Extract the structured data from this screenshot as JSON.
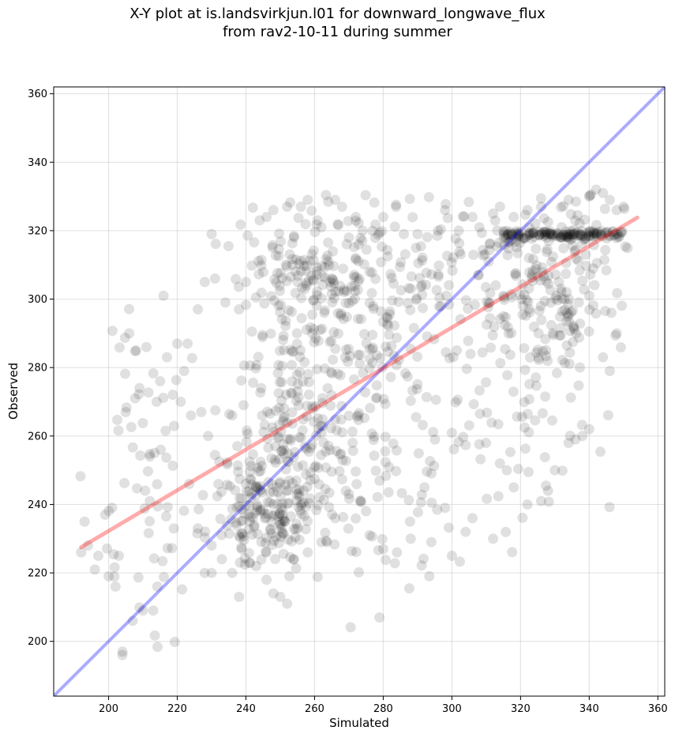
{
  "chart_data": {
    "type": "scatter",
    "title_line1": "X-Y plot at is.landsvirkjun.l01 for downward_longwave_flux",
    "title_line2": "from rav2-10-11 during summer",
    "xlabel": "Simulated",
    "ylabel": "Observed",
    "xlim": [
      184,
      362
    ],
    "ylim": [
      184,
      362
    ],
    "xticks": [
      200,
      220,
      240,
      260,
      280,
      300,
      320,
      340,
      360
    ],
    "yticks": [
      200,
      220,
      240,
      260,
      280,
      300,
      320,
      340,
      360
    ],
    "grid": true,
    "point_color": "#000000",
    "point_alpha": 0.12,
    "one_to_one_line": {
      "color": "#0000ff",
      "alpha": 0.33,
      "x": [
        184,
        362
      ],
      "y": [
        184,
        362
      ]
    },
    "regression_line": {
      "color": "#ff0000",
      "alpha": 0.33,
      "x": [
        192,
        354
      ],
      "y": [
        227.5,
        323.8
      ]
    },
    "clusters": [
      {
        "cx": 246,
        "cy": 238,
        "sx": 8,
        "sy": 9,
        "n": 180,
        "seed": 11
      },
      {
        "cx": 255,
        "cy": 262,
        "sx": 9,
        "sy": 14,
        "n": 150,
        "seed": 12
      },
      {
        "cx": 258,
        "cy": 305,
        "sx": 10,
        "sy": 10,
        "n": 130,
        "seed": 13
      },
      {
        "cx": 272,
        "cy": 285,
        "sx": 14,
        "sy": 25,
        "n": 160,
        "seed": 14
      },
      {
        "cx": 300,
        "cy": 305,
        "sx": 14,
        "sy": 12,
        "n": 110,
        "seed": 15
      },
      {
        "cx": 330,
        "cy": 305,
        "sx": 9,
        "sy": 12,
        "n": 160,
        "seed": 16
      },
      {
        "cx": 322,
        "cy": 270,
        "sx": 10,
        "sy": 15,
        "n": 60,
        "seed": 17
      },
      {
        "cx": 210,
        "cy": 240,
        "sx": 8,
        "sy": 25,
        "n": 60,
        "seed": 18
      },
      {
        "cx": 290,
        "cy": 250,
        "sx": 14,
        "sy": 18,
        "n": 70,
        "seed": 19
      }
    ],
    "dense_band": {
      "x_start": 315,
      "x_end": 350,
      "y": 318.8,
      "n": 140,
      "seed": 21
    },
    "points": [
      [
        192,
        226
      ],
      [
        193,
        235
      ],
      [
        194,
        228
      ],
      [
        196,
        221
      ],
      [
        197,
        225
      ],
      [
        199,
        237
      ],
      [
        200,
        219
      ],
      [
        201,
        239
      ],
      [
        202,
        216
      ],
      [
        203,
        225
      ],
      [
        204,
        196
      ],
      [
        205,
        267
      ],
      [
        206,
        290
      ],
      [
        207,
        206
      ],
      [
        208,
        285
      ],
      [
        209,
        274
      ],
      [
        210,
        209
      ],
      [
        211,
        286
      ],
      [
        212,
        241
      ],
      [
        213,
        209
      ],
      [
        215,
        276
      ],
      [
        216,
        301
      ],
      [
        217,
        283
      ],
      [
        219,
        233
      ],
      [
        220,
        287
      ],
      [
        221,
        270
      ],
      [
        222,
        279
      ],
      [
        223,
        287
      ],
      [
        224,
        266
      ],
      [
        226,
        297
      ],
      [
        227,
        267
      ],
      [
        228,
        305
      ],
      [
        229,
        260
      ],
      [
        230,
        319
      ],
      [
        231,
        306
      ],
      [
        232,
        246
      ],
      [
        234,
        299
      ],
      [
        236,
        266
      ],
      [
        238,
        297
      ],
      [
        240,
        305
      ],
      [
        244,
        323
      ],
      [
        246,
        324
      ],
      [
        248,
        326
      ],
      [
        252,
        327
      ],
      [
        254,
        318
      ],
      [
        256,
        327
      ],
      [
        258,
        329
      ],
      [
        262,
        321
      ],
      [
        264,
        311
      ],
      [
        266,
        329
      ],
      [
        268,
        327
      ],
      [
        270,
        318
      ],
      [
        272,
        324
      ],
      [
        274,
        320
      ],
      [
        276,
        308
      ],
      [
        280,
        324
      ],
      [
        286,
        319
      ],
      [
        290,
        319
      ],
      [
        296,
        320
      ],
      [
        298,
        326
      ],
      [
        302,
        320
      ],
      [
        306,
        324
      ],
      [
        308,
        321
      ],
      [
        312,
        325
      ],
      [
        314,
        327
      ],
      [
        318,
        324
      ],
      [
        322,
        326
      ],
      [
        326,
        327
      ],
      [
        332,
        321
      ],
      [
        334,
        329
      ],
      [
        340,
        330
      ],
      [
        342,
        332
      ],
      [
        344,
        331
      ],
      [
        346,
        329
      ],
      [
        348,
        326
      ],
      [
        350,
        327
      ],
      [
        348,
        290
      ],
      [
        346,
        279
      ],
      [
        344,
        283
      ],
      [
        340,
        262
      ],
      [
        338,
        260
      ],
      [
        336,
        259
      ],
      [
        334,
        258
      ],
      [
        330,
        250
      ],
      [
        328,
        244
      ],
      [
        326,
        241
      ],
      [
        322,
        240
      ],
      [
        318,
        245
      ],
      [
        316,
        250
      ],
      [
        314,
        252
      ],
      [
        312,
        230
      ],
      [
        306,
        236
      ],
      [
        304,
        232
      ],
      [
        300,
        225
      ],
      [
        298,
        239
      ],
      [
        294,
        229
      ],
      [
        292,
        245
      ],
      [
        288,
        230
      ],
      [
        284,
        226
      ],
      [
        280,
        227
      ],
      [
        276,
        231
      ],
      [
        270,
        243
      ],
      [
        266,
        236
      ],
      [
        262,
        229
      ],
      [
        258,
        226
      ],
      [
        254,
        224
      ],
      [
        252,
        211
      ],
      [
        250,
        213
      ],
      [
        248,
        214
      ],
      [
        246,
        218
      ],
      [
        243,
        222
      ],
      [
        241,
        223
      ],
      [
        238,
        213
      ],
      [
        236,
        220
      ],
      [
        233,
        224
      ],
      [
        230,
        220
      ],
      [
        228,
        220
      ],
      [
        226,
        233
      ],
      [
        214,
        270
      ],
      [
        212,
        254
      ]
    ]
  }
}
